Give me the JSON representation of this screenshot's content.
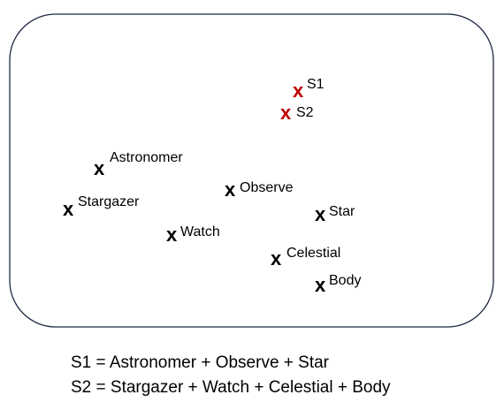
{
  "diagram": {
    "marker_glyph": "x",
    "colors": {
      "word": "#000000",
      "sentence": "#c00000",
      "frame": "#1f2a44"
    },
    "points": [
      {
        "id": "s1",
        "label": "S1",
        "kind": "sentence"
      },
      {
        "id": "s2",
        "label": "S2",
        "kind": "sentence"
      },
      {
        "id": "astronomer",
        "label": "Astronomer",
        "kind": "word"
      },
      {
        "id": "stargazer",
        "label": "Stargazer",
        "kind": "word"
      },
      {
        "id": "observe",
        "label": "Observe",
        "kind": "word"
      },
      {
        "id": "star",
        "label": "Star",
        "kind": "word"
      },
      {
        "id": "watch",
        "label": "Watch",
        "kind": "word"
      },
      {
        "id": "celestial",
        "label": "Celestial",
        "kind": "word"
      },
      {
        "id": "body",
        "label": "Body",
        "kind": "word"
      }
    ]
  },
  "legend": {
    "s1": "S1 = Astronomer + Observe + Star",
    "s2": "S2 = Stargazer + Watch + Celestial + Body"
  }
}
